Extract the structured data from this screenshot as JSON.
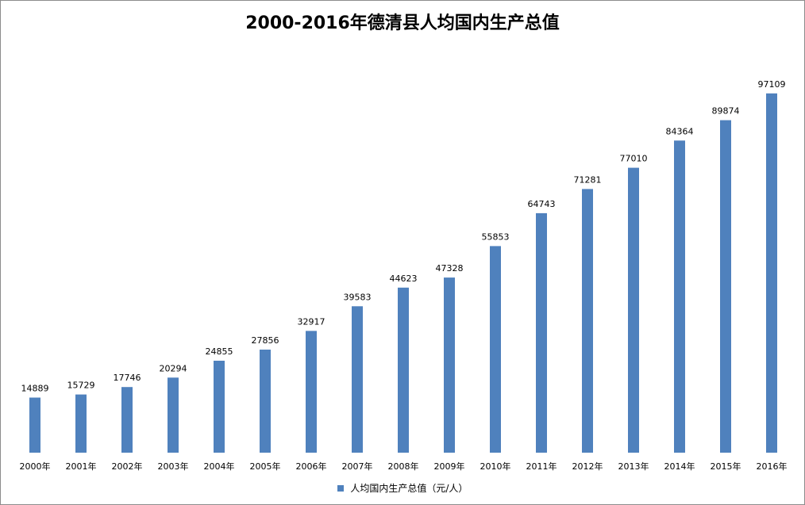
{
  "chart_data": {
    "type": "bar",
    "title": "2000-2016年德清县人均国内生产总值",
    "categories": [
      "2000年",
      "2001年",
      "2002年",
      "2003年",
      "2004年",
      "2005年",
      "2006年",
      "2007年",
      "2008年",
      "2009年",
      "2010年",
      "2011年",
      "2012年",
      "2013年",
      "2014年",
      "2015年",
      "2016年"
    ],
    "series": [
      {
        "name": "人均国内生产总值（元/人）",
        "values": [
          14889,
          15729,
          17746,
          20294,
          24855,
          27856,
          32917,
          39583,
          44623,
          47328,
          55853,
          64743,
          71281,
          77010,
          84364,
          89874,
          97109
        ],
        "color": "#4f81bd"
      }
    ],
    "ylim": [
      0,
      120000
    ],
    "grid": false,
    "legend_position": "bottom",
    "data_labels": true
  }
}
